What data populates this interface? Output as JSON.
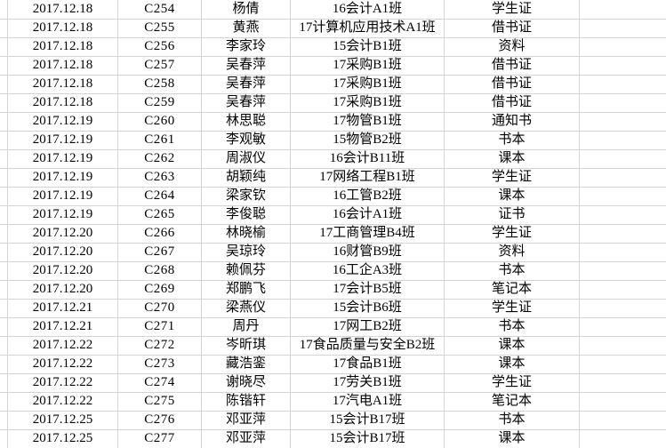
{
  "colors": {
    "background": "#ffffff",
    "gridline": "#d4d4d4",
    "text": "#000000"
  },
  "table": {
    "visible_columns": [
      "date",
      "code",
      "name",
      "class",
      "item",
      "blank"
    ],
    "rows": [
      {
        "date": "2017.12.18",
        "code": "C254",
        "name": "杨倩",
        "class": "16会计A1班",
        "item": "学生证"
      },
      {
        "date": "2017.12.18",
        "code": "C255",
        "name": "黄燕",
        "class": "17计算机应用技术A1班",
        "item": "借书证"
      },
      {
        "date": "2017.12.18",
        "code": "C256",
        "name": "李家玲",
        "class": "15会计B1班",
        "item": "资料"
      },
      {
        "date": "2017.12.18",
        "code": "C257",
        "name": "吴春萍",
        "class": "17采购B1班",
        "item": "借书证"
      },
      {
        "date": "2017.12.18",
        "code": "C258",
        "name": "吴春萍",
        "class": "17采购B1班",
        "item": "借书证"
      },
      {
        "date": "2017.12.18",
        "code": "C259",
        "name": "吴春萍",
        "class": "17采购B1班",
        "item": "借书证"
      },
      {
        "date": "2017.12.19",
        "code": "C260",
        "name": "林思聪",
        "class": "17物管B1班",
        "item": "通知书"
      },
      {
        "date": "2017.12.19",
        "code": "C261",
        "name": "李观敏",
        "class": "15物管B2班",
        "item": "书本"
      },
      {
        "date": "2017.12.19",
        "code": "C262",
        "name": "周淑仪",
        "class": "16会计B11班",
        "item": "课本"
      },
      {
        "date": "2017.12.19",
        "code": "C263",
        "name": "胡颖纯",
        "class": "17网络工程B1班",
        "item": "学生证"
      },
      {
        "date": "2017.12.19",
        "code": "C264",
        "name": "梁家钦",
        "class": "16工管B2班",
        "item": "课本"
      },
      {
        "date": "2017.12.19",
        "code": "C265",
        "name": "李俊聪",
        "class": "16会计A1班",
        "item": "证书"
      },
      {
        "date": "2017.12.20",
        "code": "C266",
        "name": "林晓榆",
        "class": "17工商管理B4班",
        "item": "学生证"
      },
      {
        "date": "2017.12.20",
        "code": "C267",
        "name": "吴琼玲",
        "class": "16财管B9班",
        "item": "资料"
      },
      {
        "date": "2017.12.20",
        "code": "C268",
        "name": "赖佩芬",
        "class": "16工企A3班",
        "item": "书本"
      },
      {
        "date": "2017.12.20",
        "code": "C269",
        "name": "郑鹏飞",
        "class": "17会计B5班",
        "item": "笔记本"
      },
      {
        "date": "2017.12.21",
        "code": "C270",
        "name": "梁燕仪",
        "class": "15会计B6班",
        "item": "学生证"
      },
      {
        "date": "2017.12.21",
        "code": "C271",
        "name": "周丹",
        "class": "17网工B2班",
        "item": "书本"
      },
      {
        "date": "2017.12.22",
        "code": "C272",
        "name": "岑昕琪",
        "class": "17食品质量与安全B2班",
        "item": "课本"
      },
      {
        "date": "2017.12.22",
        "code": "C273",
        "name": "藏浩銮",
        "class": "17食品B1班",
        "item": "课本"
      },
      {
        "date": "2017.12.22",
        "code": "C274",
        "name": "谢晓尽",
        "class": "17劳关B1班",
        "item": "学生证"
      },
      {
        "date": "2017.12.22",
        "code": "C275",
        "name": "陈锴轩",
        "class": "17汽电A1班",
        "item": "笔记本"
      },
      {
        "date": "2017.12.25",
        "code": "C276",
        "name": "邓亚萍",
        "class": "15会计B17班",
        "item": "书本"
      },
      {
        "date": "2017.12.25",
        "code": "C277",
        "name": "邓亚萍",
        "class": "15会计B17班",
        "item": "课本"
      }
    ]
  }
}
